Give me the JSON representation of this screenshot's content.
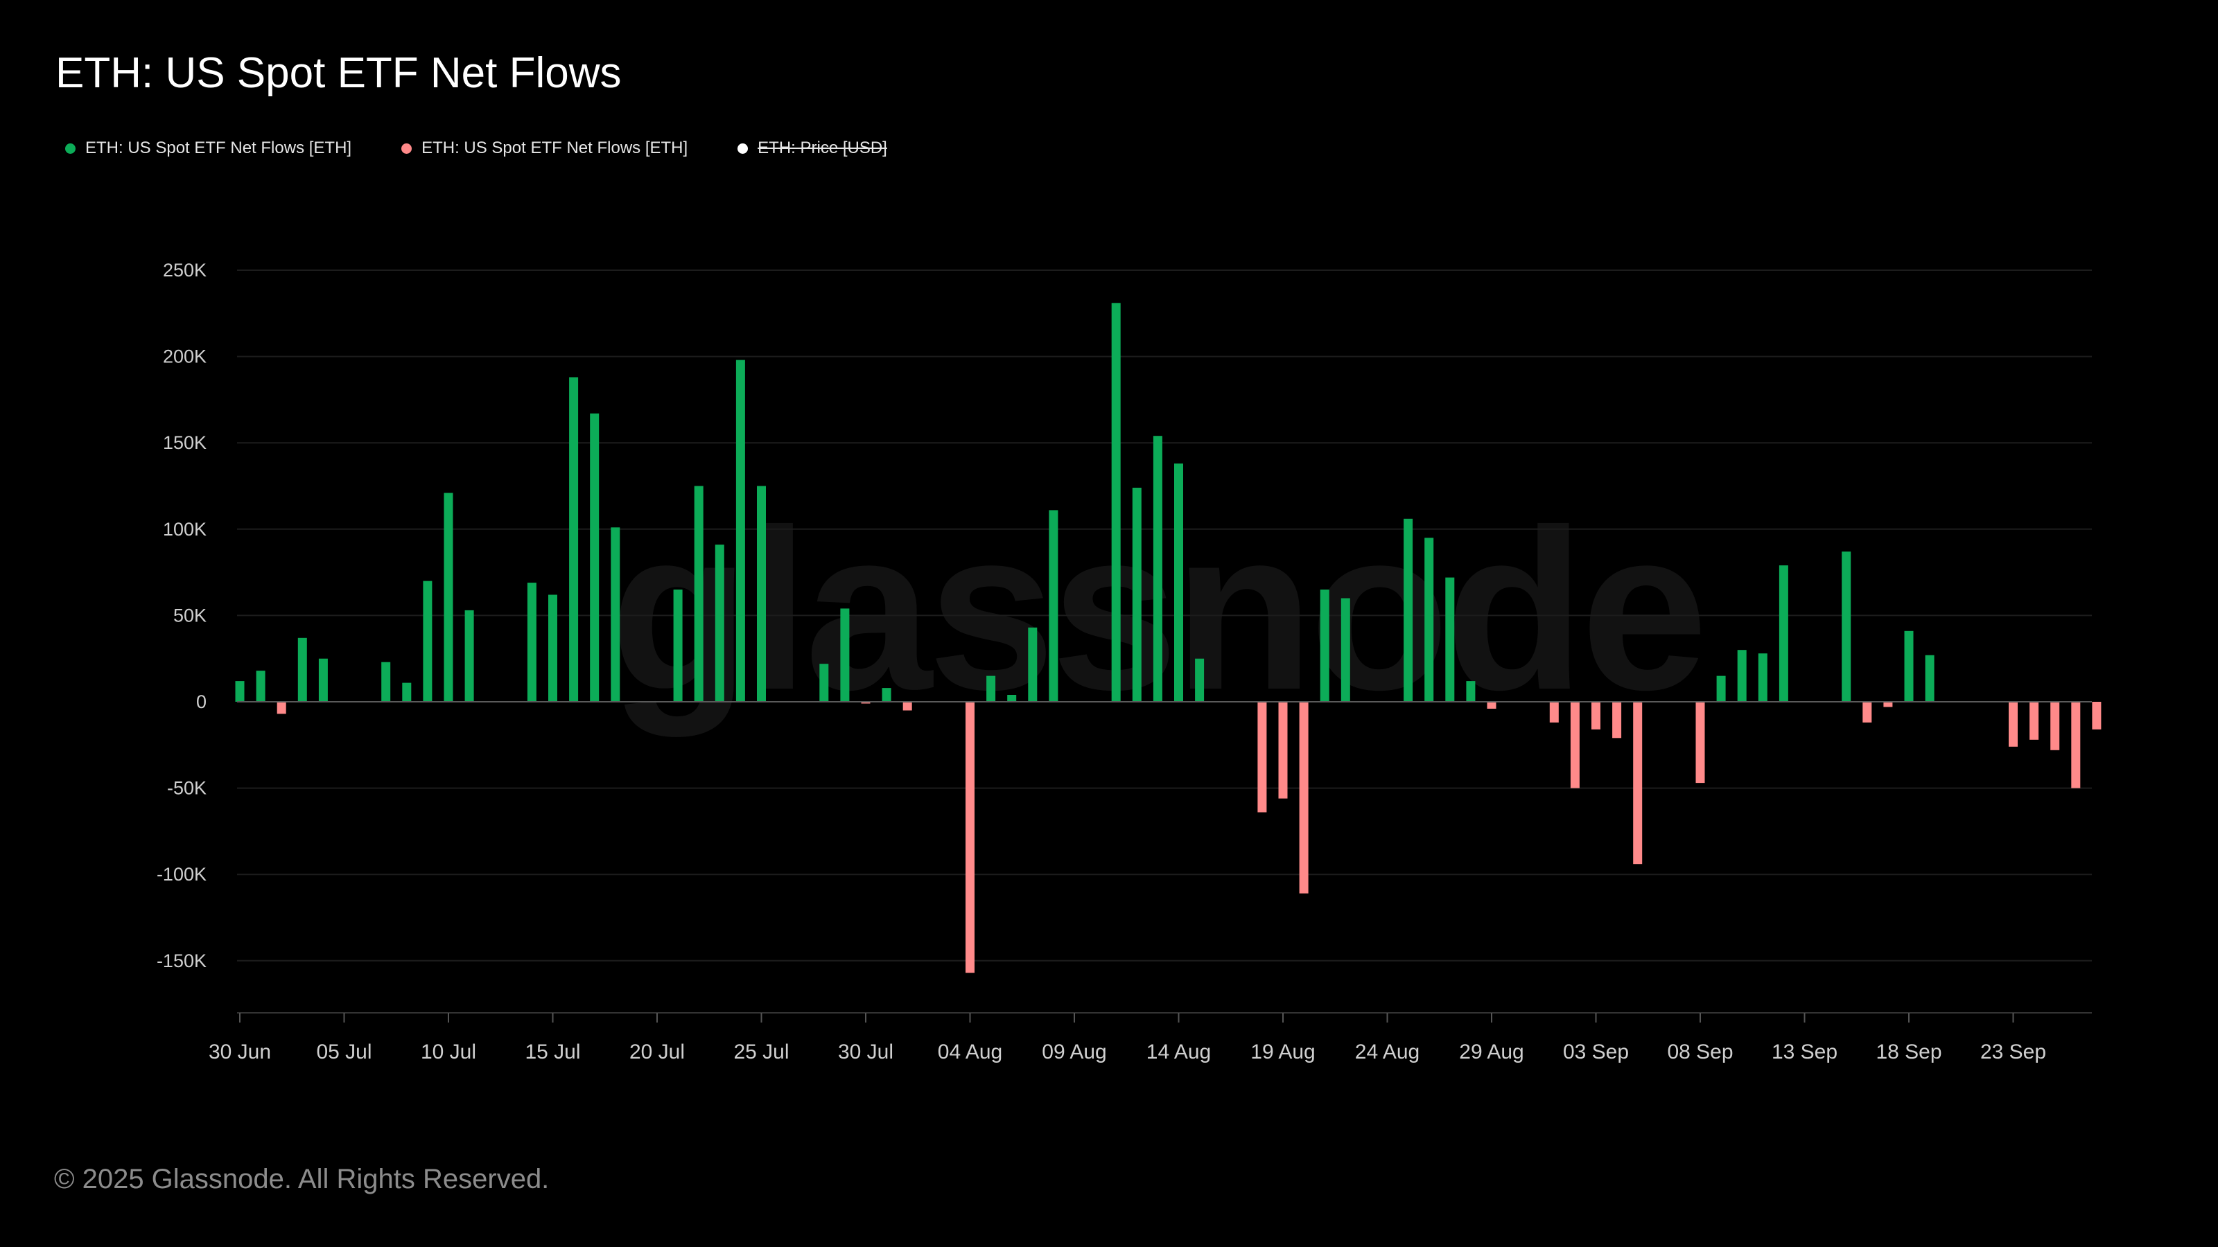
{
  "page": {
    "title": "ETH: US Spot ETF Net Flows",
    "footer": "© 2025 Glassnode. All Rights Reserved.",
    "watermark": "glassnode"
  },
  "legend": [
    {
      "label": "ETH: US Spot ETF Net Flows [ETH]",
      "color": "#0cac58",
      "hidden": false
    },
    {
      "label": "ETH: US Spot ETF Net Flows [ETH]",
      "color": "#ff8a8a",
      "hidden": false
    },
    {
      "label": "ETH: Price [USD]",
      "color": "#ffffff",
      "hidden": true
    }
  ],
  "colors": {
    "positive": "#0cac58",
    "negative": "#ff8a8a",
    "background": "#000000",
    "grid": "#1c1c1c",
    "zero_line": "#5a5a5a",
    "axis_text": "#cfcfcf"
  },
  "chart_data": {
    "type": "bar",
    "title": "ETH: US Spot ETF Net Flows",
    "xlabel": "",
    "ylabel": "",
    "ylim": [
      -180000,
      250000
    ],
    "y_ticks": [
      250000,
      200000,
      150000,
      100000,
      50000,
      0,
      -50000,
      -100000,
      -150000
    ],
    "y_tick_labels": [
      "250K",
      "200K",
      "150K",
      "100K",
      "50K",
      "0",
      "-50K",
      "-100K",
      "-150K"
    ],
    "x_tick_labels": [
      "30 Jun",
      "05 Jul",
      "10 Jul",
      "15 Jul",
      "20 Jul",
      "25 Jul",
      "30 Jul",
      "04 Aug",
      "09 Aug",
      "14 Aug",
      "19 Aug",
      "24 Aug",
      "29 Aug",
      "03 Sep",
      "08 Sep",
      "13 Sep",
      "18 Sep",
      "23 Sep"
    ],
    "x_tick_day_index": [
      0,
      5,
      10,
      15,
      20,
      25,
      30,
      35,
      40,
      45,
      50,
      55,
      60,
      65,
      70,
      75,
      80,
      85
    ],
    "days_total": 90,
    "grid": true,
    "legend_position": "top-left",
    "series": [
      {
        "name": "ETH: US Spot ETF Net Flows [ETH]",
        "values": [
          12000,
          18000,
          -7000,
          37000,
          25000,
          0,
          0,
          23000,
          11000,
          70000,
          121000,
          53000,
          0,
          0,
          69000,
          62000,
          188000,
          167000,
          101000,
          0,
          0,
          65000,
          125000,
          91000,
          198000,
          125000,
          0,
          0,
          22000,
          54000,
          -1000,
          8000,
          -5000,
          0,
          0,
          -157000,
          15000,
          4000,
          43000,
          111000,
          0,
          0,
          231000,
          124000,
          154000,
          138000,
          25000,
          0,
          0,
          -64000,
          -56000,
          -111000,
          65000,
          60000,
          0,
          0,
          106000,
          95000,
          72000,
          12000,
          -4000,
          0,
          0,
          -12000,
          -50000,
          -16000,
          -21000,
          -94000,
          0,
          0,
          -47000,
          15000,
          30000,
          28000,
          79000,
          0,
          0,
          87000,
          -12000,
          -3000,
          41000,
          27000,
          0,
          0,
          0,
          -26000,
          -22000,
          -28000,
          -50000,
          -16000
        ]
      }
    ]
  }
}
